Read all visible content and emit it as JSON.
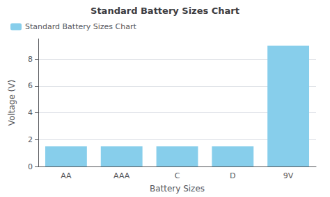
{
  "chart_data": {
    "type": "bar",
    "title": "Standard Battery Sizes Chart",
    "xlabel": "Battery Sizes",
    "ylabel": "Voltage (V)",
    "categories": [
      "AA",
      "AAA",
      "C",
      "D",
      "9V"
    ],
    "series": [
      {
        "name": "Standard Battery Sizes Chart",
        "color": "#87CEEB",
        "values": [
          1.5,
          1.5,
          1.5,
          1.5,
          9.0
        ]
      }
    ],
    "ylim": [
      0,
      9.5
    ],
    "yticks": [
      0,
      2,
      4,
      6,
      8
    ],
    "grid": true,
    "legend": "upper left"
  }
}
